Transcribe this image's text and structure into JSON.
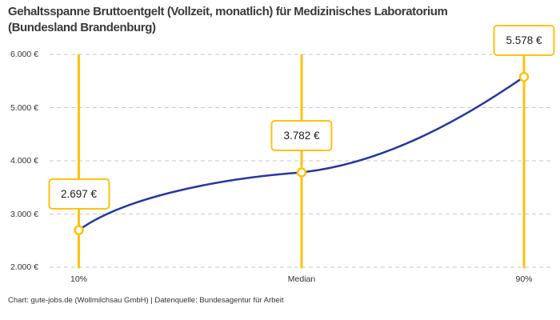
{
  "title": {
    "line1": "Gehaltsspanne Bruttoentgelt (Vollzeit, monatlich) für Medizinisches Laboratorium",
    "line2": "(Bundesland Brandenburg)"
  },
  "footer": "Chart: gute-jobs.de (Wollmilchsau GmbH) | Datenquelle: Bundesagentur für Arbeit",
  "colors": {
    "accent_yellow": "#ffc20e",
    "line_blue": "#26389f",
    "grid_gray": "#c9c9c9",
    "title_text": "#3a3a3a",
    "tick_text": "#333333"
  },
  "chart_data": {
    "type": "line",
    "title": "Gehaltsspanne Bruttoentgelt (Vollzeit, monatlich) für Medizinisches Laboratorium (Bundesland Brandenburg)",
    "categories": [
      "10%",
      "Median",
      "90%"
    ],
    "values": [
      2697,
      3782,
      5578
    ],
    "point_labels": [
      "2.697 €",
      "3.782 €",
      "5.578 €"
    ],
    "y_ticks": [
      2000,
      3000,
      4000,
      5000,
      6000
    ],
    "y_tick_labels": [
      "2.000 €",
      "3.000 €",
      "4.000 €",
      "5.000 €",
      "6.000 €"
    ],
    "ylim": [
      2000,
      6000
    ],
    "xlabel": "",
    "ylabel": "",
    "grid": "horizontal-dashed",
    "legend": "none",
    "marker": "open-circle-on-vertical-guide"
  }
}
